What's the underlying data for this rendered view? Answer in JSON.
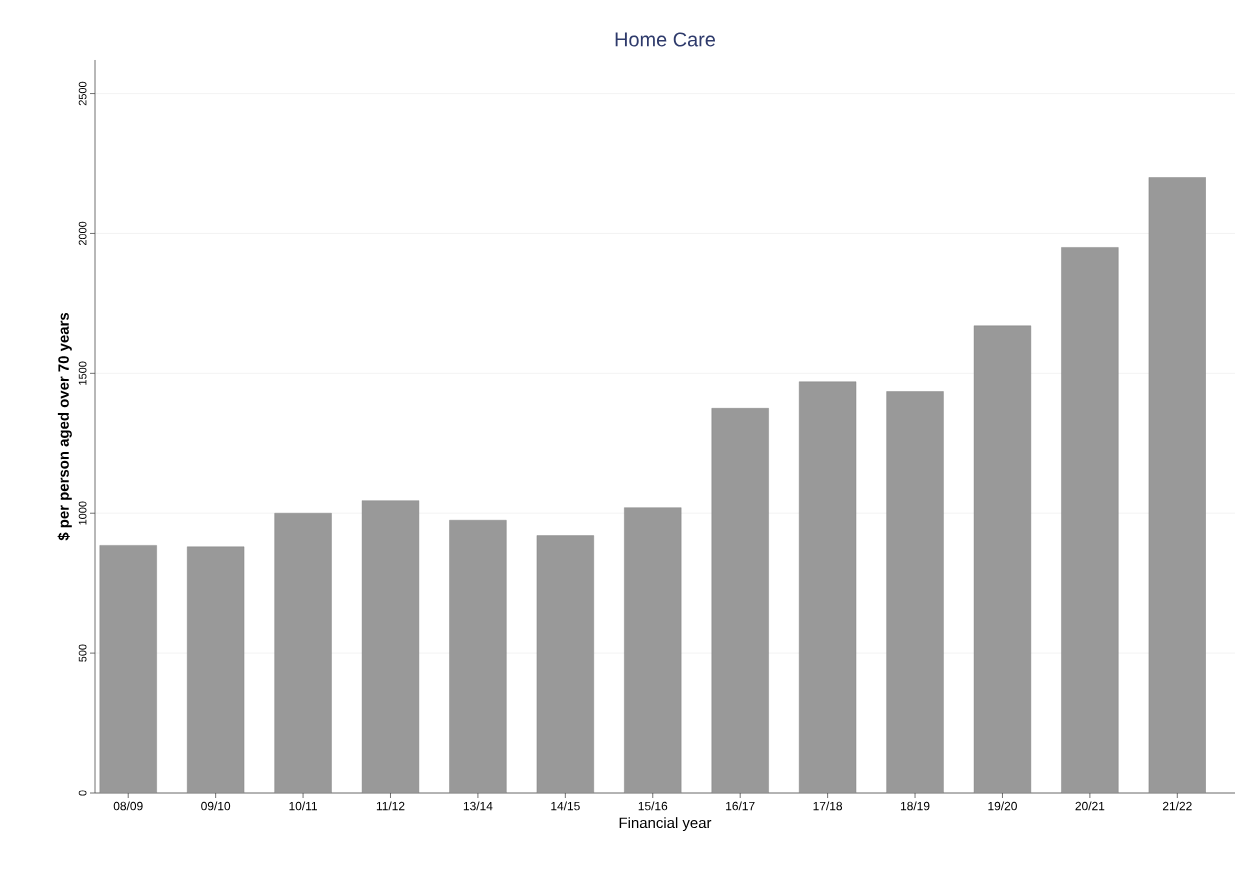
{
  "chart_data": {
    "type": "bar",
    "title": "Home Care",
    "xlabel": "Financial year",
    "ylabel": "$ per person aged over 70 years",
    "categories": [
      "08/09",
      "09/10",
      "10/11",
      "11/12",
      "13/14",
      "14/15",
      "15/16",
      "16/17",
      "17/18",
      "18/19",
      "19/20",
      "20/21",
      "21/22"
    ],
    "values": [
      885,
      880,
      1000,
      1045,
      975,
      920,
      1020,
      1375,
      1470,
      1435,
      1670,
      1950,
      2200
    ],
    "color": "#999999",
    "ylim": [
      0,
      2620
    ],
    "yticks": [
      0,
      500,
      1000,
      1500,
      2000,
      2500
    ],
    "grid": "y"
  }
}
